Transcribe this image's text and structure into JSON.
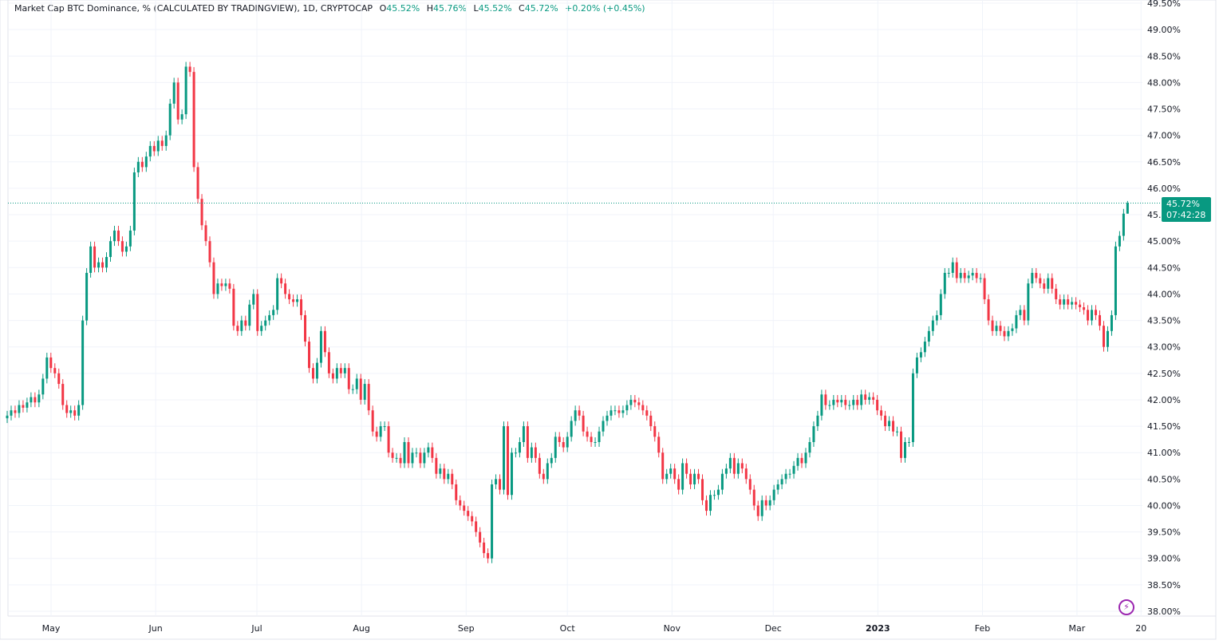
{
  "header": {
    "title": "Market Cap BTC Dominance, % (CALCULATED BY TRADINGVIEW), 1D, CRYPTOCAP",
    "o_label": "O",
    "o_value": "45.52%",
    "h_label": "H",
    "h_value": "45.76%",
    "l_label": "L",
    "l_value": "45.52%",
    "c_label": "C",
    "c_value": "45.72%",
    "change": "+0.20% (+0.45%)"
  },
  "price_badge": {
    "value": "45.72%",
    "countdown": "07:42:28"
  },
  "colors": {
    "up": "#089981",
    "down": "#f23645",
    "badge": "#089981",
    "grid": "#f0f3fa",
    "lightning": "#9c27b0"
  },
  "icons": [
    "lightning-icon"
  ],
  "chart_data": {
    "type": "candlestick",
    "title": "Market Cap BTC Dominance, % (CALCULATED BY TRADINGVIEW), 1D, CRYPTOCAP",
    "interval": "1D",
    "x_range": [
      "2022-04-18",
      "2023-03-16"
    ],
    "ylim": [
      38.0,
      49.5
    ],
    "grid": true,
    "y_ticks": [
      "49.50%",
      "49.00%",
      "48.50%",
      "48.00%",
      "47.50%",
      "47.00%",
      "46.50%",
      "46.00%",
      "45.50%",
      "45.00%",
      "44.50%",
      "44.00%",
      "43.50%",
      "43.00%",
      "42.50%",
      "42.00%",
      "41.50%",
      "41.00%",
      "40.50%",
      "40.00%",
      "39.50%",
      "39.00%",
      "38.50%",
      "38.00%"
    ],
    "y_tick_values": [
      49.5,
      49,
      48.5,
      48,
      47.5,
      47,
      46.5,
      46,
      45.5,
      45,
      44.5,
      44,
      43.5,
      43,
      42.5,
      42,
      41.5,
      41,
      40.5,
      40,
      39.5,
      39,
      38.5,
      38
    ],
    "x_ticks": [
      {
        "label": "May",
        "date": "2022-05-01",
        "bold": false
      },
      {
        "label": "Jun",
        "date": "2022-06-01",
        "bold": false
      },
      {
        "label": "Jul",
        "date": "2022-07-01",
        "bold": false
      },
      {
        "label": "Aug",
        "date": "2022-08-01",
        "bold": false
      },
      {
        "label": "Sep",
        "date": "2022-09-01",
        "bold": false
      },
      {
        "label": "Oct",
        "date": "2022-10-01",
        "bold": false
      },
      {
        "label": "Nov",
        "date": "2022-11-01",
        "bold": false
      },
      {
        "label": "Dec",
        "date": "2022-12-01",
        "bold": false
      },
      {
        "label": "2023",
        "date": "2023-01-01",
        "bold": true
      },
      {
        "label": "Feb",
        "date": "2023-02-01",
        "bold": false
      },
      {
        "label": "Mar",
        "date": "2023-03-01",
        "bold": false
      },
      {
        "label": "20",
        "date": "2023-03-20",
        "bold": false
      }
    ],
    "last": {
      "open": 45.52,
      "high": 45.76,
      "low": 45.52,
      "close": 45.72
    },
    "closes": [
      41.7,
      41.8,
      41.75,
      41.9,
      41.85,
      41.95,
      42.05,
      41.95,
      42.1,
      42.4,
      42.8,
      42.6,
      42.5,
      42.3,
      41.9,
      41.75,
      41.8,
      41.7,
      41.9,
      43.5,
      44.4,
      44.9,
      44.5,
      44.6,
      44.5,
      44.7,
      45.0,
      45.2,
      45.0,
      44.8,
      44.9,
      45.2,
      46.3,
      46.5,
      46.4,
      46.6,
      46.8,
      46.7,
      46.9,
      46.8,
      47.0,
      47.6,
      48.0,
      47.3,
      47.4,
      48.3,
      48.2,
      46.4,
      45.8,
      45.3,
      45.0,
      44.6,
      44.0,
      44.2,
      44.15,
      44.2,
      44.1,
      43.4,
      43.3,
      43.5,
      43.4,
      43.8,
      44.0,
      43.3,
      43.4,
      43.5,
      43.6,
      43.7,
      44.3,
      44.2,
      44.0,
      43.9,
      43.85,
      43.9,
      43.6,
      43.1,
      42.6,
      42.4,
      42.7,
      43.3,
      42.9,
      42.5,
      42.4,
      42.6,
      42.5,
      42.6,
      42.2,
      42.2,
      42.4,
      42.0,
      42.3,
      41.8,
      41.4,
      41.3,
      41.5,
      41.5,
      41.0,
      40.9,
      40.9,
      40.8,
      41.2,
      40.8,
      41.0,
      41.0,
      40.8,
      41.0,
      41.1,
      40.9,
      40.6,
      40.7,
      40.5,
      40.6,
      40.4,
      40.1,
      40.0,
      39.9,
      39.8,
      39.7,
      39.5,
      39.3,
      39.1,
      39.0,
      40.4,
      40.5,
      40.3,
      41.5,
      40.2,
      41.0,
      41.0,
      41.2,
      41.5,
      40.9,
      41.1,
      40.9,
      40.6,
      40.5,
      40.8,
      40.9,
      41.3,
      41.2,
      41.1,
      41.3,
      41.6,
      41.8,
      41.7,
      41.4,
      41.3,
      41.2,
      41.2,
      41.4,
      41.6,
      41.7,
      41.8,
      41.8,
      41.75,
      41.8,
      41.9,
      42.0,
      41.95,
      41.9,
      41.8,
      41.7,
      41.5,
      41.3,
      41.0,
      40.5,
      40.6,
      40.7,
      40.5,
      40.3,
      40.8,
      40.6,
      40.4,
      40.6,
      40.5,
      40.1,
      39.9,
      40.2,
      40.2,
      40.3,
      40.6,
      40.7,
      40.9,
      40.6,
      40.8,
      40.7,
      40.5,
      40.3,
      40.0,
      39.8,
      40.1,
      40.0,
      40.1,
      40.3,
      40.4,
      40.5,
      40.6,
      40.6,
      40.75,
      40.9,
      40.8,
      41.0,
      41.2,
      41.5,
      41.7,
      42.1,
      41.9,
      41.9,
      42.0,
      41.95,
      42.0,
      41.9,
      41.9,
      42.0,
      41.9,
      42.1,
      42.0,
      42.05,
      42.0,
      41.8,
      41.7,
      41.5,
      41.6,
      41.4,
      41.4,
      40.9,
      41.2,
      41.2,
      42.5,
      42.8,
      42.9,
      43.1,
      43.3,
      43.5,
      43.6,
      44.0,
      44.4,
      44.4,
      44.6,
      44.3,
      44.4,
      44.3,
      44.35,
      44.4,
      44.3,
      44.3,
      43.9,
      43.5,
      43.3,
      43.4,
      43.3,
      43.2,
      43.3,
      43.35,
      43.6,
      43.7,
      43.5,
      44.2,
      44.4,
      44.3,
      44.2,
      44.1,
      44.3,
      44.1,
      43.9,
      43.8,
      43.9,
      43.8,
      43.85,
      43.8,
      43.75,
      43.7,
      43.5,
      43.7,
      43.6,
      43.4,
      43.0,
      43.3,
      43.6,
      44.9,
      45.1,
      45.52,
      45.72
    ]
  }
}
